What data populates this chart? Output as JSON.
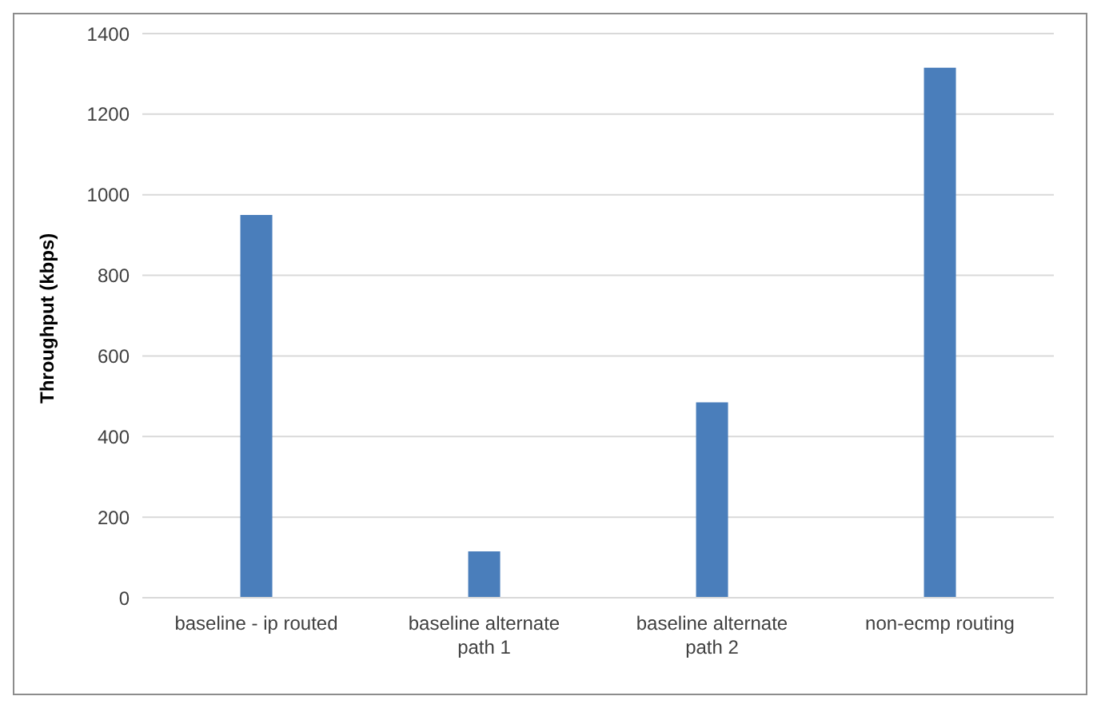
{
  "chart_data": {
    "type": "bar",
    "ylabel": "Throughput (kbps)",
    "categories": [
      "baseline - ip routed",
      "baseline alternate path 1",
      "baseline alternate path 2",
      "non-ecmp routing"
    ],
    "values": [
      950,
      115,
      485,
      1315
    ],
    "color": "#4a7ebb",
    "ylim": [
      0,
      1400
    ],
    "yticks": [
      0,
      200,
      400,
      600,
      800,
      1000,
      1200,
      1400
    ],
    "grid": "y"
  }
}
